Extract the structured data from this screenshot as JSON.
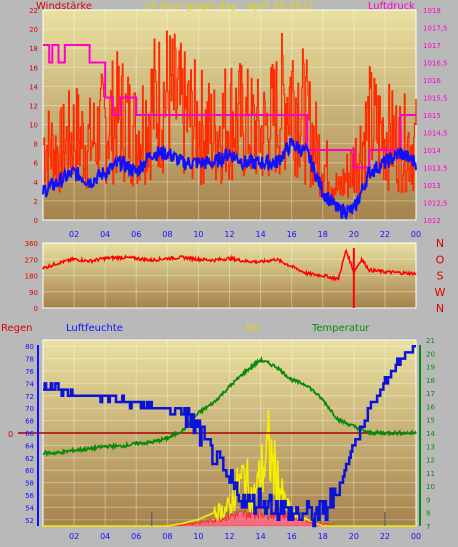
{
  "colors": {
    "bg": "#b9b9b9",
    "plot_top": "#e9e0a0",
    "plot_bottom": "#a6824c",
    "wind": "#ff2a00",
    "gust": "#1010ff",
    "pressure": "#ff00cc",
    "dir": "#ff0000",
    "rain": "#ff1010",
    "hum": "#0a14d8",
    "uv": "#f5ee00",
    "temp": "#0a8a0a",
    "hline": "#b00000"
  },
  "top": {
    "title": "24 hour graph day - April 29.2017",
    "left_label": "Windstärke",
    "right_label": "Luftdruck",
    "left_ticks": [
      "0",
      "2",
      "4",
      "6",
      "8",
      "10",
      "12",
      "14",
      "16",
      "18",
      "20",
      "22"
    ],
    "right_ticks": [
      "1012",
      "1012,5",
      "1013",
      "1013,5",
      "1014",
      "1014,5",
      "1015",
      "1015,5",
      "1016",
      "1016,5",
      "1017",
      "1017,5",
      "1018"
    ]
  },
  "mid": {
    "left_ticks": [
      "0",
      "90",
      "180",
      "270",
      "360"
    ],
    "compass": [
      "N",
      "W",
      "S",
      "O",
      "N"
    ]
  },
  "bottom": {
    "label_rain": "Regen",
    "label_hum": "Luftfeuchte",
    "label_uv": "UV",
    "label_temp": "Temperatur",
    "hum_ticks": [
      "52",
      "54",
      "56",
      "58",
      "60",
      "62",
      "64",
      "66",
      "68",
      "70",
      "72",
      "74",
      "76",
      "78",
      "80"
    ],
    "temp_ticks": [
      "7",
      "8",
      "9",
      "10",
      "11",
      "12",
      "13",
      "14",
      "15",
      "16",
      "17",
      "18",
      "19",
      "20",
      "21"
    ],
    "rain_tick": "0"
  },
  "hours": [
    "02",
    "04",
    "06",
    "08",
    "10",
    "12",
    "14",
    "16",
    "18",
    "20",
    "22",
    "00"
  ],
  "chart_data": [
    {
      "type": "line",
      "title": "24 hour graph day - April 29.2017",
      "x_unit": "hour of day",
      "series": [
        {
          "name": "Windstärke",
          "axis": "left",
          "x": [
            0,
            1,
            2,
            3,
            4,
            5,
            6,
            7,
            8,
            9,
            10,
            11,
            12,
            13,
            14,
            15,
            16,
            17,
            18,
            19,
            20,
            21,
            22,
            23,
            24
          ],
          "values": [
            8,
            7,
            9,
            8,
            10,
            11,
            9,
            12,
            13,
            11,
            10,
            9,
            11,
            10,
            9,
            11,
            14,
            10,
            6,
            3,
            6,
            10,
            9,
            8,
            8
          ]
        },
        {
          "x": [
            0,
            1,
            2,
            3,
            4,
            5,
            6,
            7,
            8,
            9,
            10,
            11,
            12,
            13,
            14,
            15,
            16,
            17,
            18,
            19,
            20,
            21,
            22,
            23,
            24
          ],
          "values": [
            3,
            4,
            5,
            4,
            5,
            6,
            5,
            7,
            7,
            6,
            6,
            6,
            7,
            6,
            6,
            6,
            8,
            7,
            3,
            1,
            1,
            5,
            6,
            7,
            6
          ]
        },
        {
          "name": "Luftdruck",
          "axis": "right",
          "x": [
            0,
            0.4,
            0.6,
            1,
            1.4,
            2,
            3,
            4,
            4.5,
            5,
            6,
            8,
            9,
            10,
            11,
            12,
            13,
            14,
            15,
            16,
            17,
            18,
            19,
            20,
            21,
            22,
            23,
            24
          ],
          "values": [
            1017,
            1016.5,
            1017,
            1016.5,
            1017,
            1017,
            1016.5,
            1015.5,
            1015,
            1015.5,
            1015,
            1015,
            1015,
            1015,
            1015,
            1015,
            1015,
            1015,
            1015,
            1015,
            1014,
            1014,
            1014,
            1013.5,
            1014,
            1014,
            1015,
            1015
          ]
        }
      ],
      "ylim_left": [
        0,
        22
      ],
      "ylim_right": [
        1012,
        1018
      ]
    },
    {
      "type": "line",
      "x_unit": "hour of day",
      "series": [
        {
          "x": [
            0,
            1,
            2,
            3,
            4,
            5,
            6,
            7,
            8,
            9,
            10,
            11,
            12,
            13,
            14,
            15,
            16,
            17,
            18,
            19,
            19.5,
            20,
            20.5,
            21,
            22,
            23,
            24
          ],
          "values": [
            220,
            250,
            270,
            260,
            275,
            280,
            275,
            265,
            275,
            280,
            270,
            265,
            275,
            260,
            255,
            270,
            230,
            190,
            180,
            160,
            320,
            200,
            270,
            210,
            200,
            195,
            190
          ]
        }
      ],
      "ylim": [
        0,
        360
      ]
    },
    {
      "type": "line",
      "x_unit": "hour of day",
      "series": [
        {
          "name": "Luftfeuchte",
          "axis": "left",
          "x": [
            0,
            1,
            2,
            3,
            4,
            5,
            6,
            7,
            8,
            9,
            10,
            11,
            12,
            13,
            14,
            15,
            16,
            17,
            18,
            19,
            20,
            21,
            22,
            23,
            24
          ],
          "values": [
            74,
            73,
            72,
            72,
            72,
            71,
            71,
            70,
            70,
            69,
            66,
            62,
            58,
            55,
            55,
            54,
            53,
            53,
            53,
            57,
            64,
            70,
            74,
            78,
            80
          ]
        },
        {
          "name": "Temperatur",
          "axis": "right",
          "x": [
            0,
            1,
            2,
            3,
            4,
            5,
            6,
            7,
            8,
            9,
            10,
            11,
            12,
            13,
            14,
            15,
            16,
            17,
            18,
            19,
            20,
            21,
            22,
            23,
            24
          ],
          "values": [
            12.5,
            12.5,
            12.7,
            12.8,
            13,
            13,
            13.2,
            13.3,
            13.6,
            14.2,
            15.5,
            16.3,
            17.5,
            18.6,
            19.5,
            19,
            18,
            17.6,
            16.5,
            15,
            14.5,
            14,
            14,
            14,
            14
          ]
        },
        {
          "name": "UV",
          "x": [
            0,
            8,
            9,
            10,
            11,
            12,
            12.5,
            13,
            13.5,
            14,
            14.5,
            15,
            15.5,
            16,
            17,
            18,
            19,
            24
          ],
          "values": [
            7,
            7,
            7.2,
            7.5,
            8,
            8.5,
            10,
            11,
            9,
            11,
            13,
            11,
            9,
            8,
            7.5,
            7,
            7,
            7
          ]
        },
        {
          "name": "Regen",
          "x": [
            0,
            8,
            9,
            10,
            11,
            12,
            13,
            14,
            15,
            16,
            17,
            18,
            19,
            24
          ],
          "values": [
            0,
            0,
            0.3,
            0.8,
            1.5,
            2.5,
            3,
            3.5,
            3,
            2.5,
            1.5,
            0.5,
            0,
            0
          ]
        }
      ],
      "ylim_left": [
        51,
        81
      ],
      "ylim_right": [
        7,
        21
      ]
    }
  ]
}
